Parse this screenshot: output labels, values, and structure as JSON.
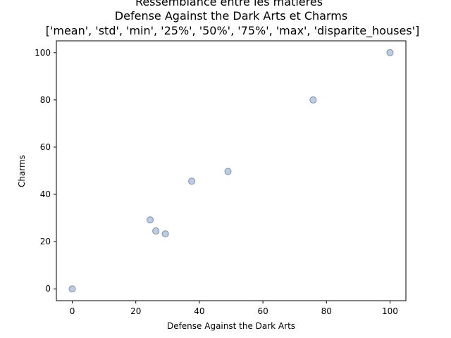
{
  "chart_data": {
    "type": "scatter",
    "title_lines": [
      "Ressemblance entre les matières",
      "Defense Against the Dark Arts et Charms",
      "['mean', 'std', 'min', '25%', '50%', '75%', 'max', 'disparite_houses']"
    ],
    "xlabel": "Defense Against the Dark Arts",
    "ylabel": "Charms",
    "xlim": [
      -5,
      105
    ],
    "ylim": [
      -5,
      105
    ],
    "xticks": [
      0,
      20,
      40,
      60,
      80,
      100
    ],
    "yticks": [
      0,
      20,
      40,
      60,
      80,
      100
    ],
    "grid": false,
    "points": [
      {
        "x": 0,
        "y": 0
      },
      {
        "x": 24.5,
        "y": 29.2
      },
      {
        "x": 26.3,
        "y": 24.5
      },
      {
        "x": 29.3,
        "y": 23.3
      },
      {
        "x": 37.6,
        "y": 45.6
      },
      {
        "x": 49.0,
        "y": 49.7
      },
      {
        "x": 75.8,
        "y": 80.0
      },
      {
        "x": 100,
        "y": 100
      }
    ],
    "marker_fill": "#b0c4de",
    "marker_edge": "#7f8fa6"
  }
}
